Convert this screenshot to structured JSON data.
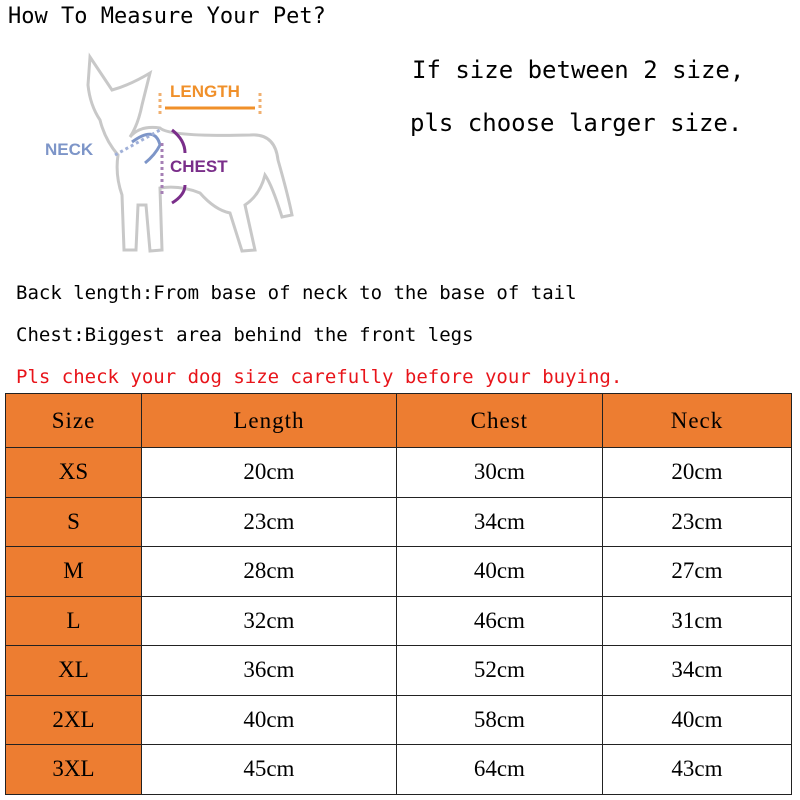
{
  "title": "How To Measure Your Pet?",
  "notes": [
    "If size between 2 size,",
    "pls choose larger size."
  ],
  "diagram": {
    "labels": {
      "length": "LENGTH",
      "neck": "NECK",
      "chest": "CHEST"
    },
    "colors": {
      "length": "#f0902a",
      "neck": "#7d95c8",
      "chest": "#7a2e8a"
    }
  },
  "definitions": [
    "Back length:From base of neck to the base of tail",
    "Chest:Biggest area behind the front legs"
  ],
  "warning": "Pls check your dog size carefully before your buying.",
  "colors": {
    "header": "#ed7d31",
    "warning": "#e8141a"
  },
  "table": {
    "headers": [
      "Size",
      "Length",
      "Chest",
      "Neck"
    ],
    "rows": [
      [
        "XS",
        "20cm",
        "30cm",
        "20cm"
      ],
      [
        "S",
        "23cm",
        "34cm",
        "23cm"
      ],
      [
        "M",
        "28cm",
        "40cm",
        "27cm"
      ],
      [
        "L",
        "32cm",
        "46cm",
        "31cm"
      ],
      [
        "XL",
        "36cm",
        "52cm",
        "34cm"
      ],
      [
        "2XL",
        "40cm",
        "58cm",
        "40cm"
      ],
      [
        "3XL",
        "45cm",
        "64cm",
        "43cm"
      ]
    ]
  }
}
